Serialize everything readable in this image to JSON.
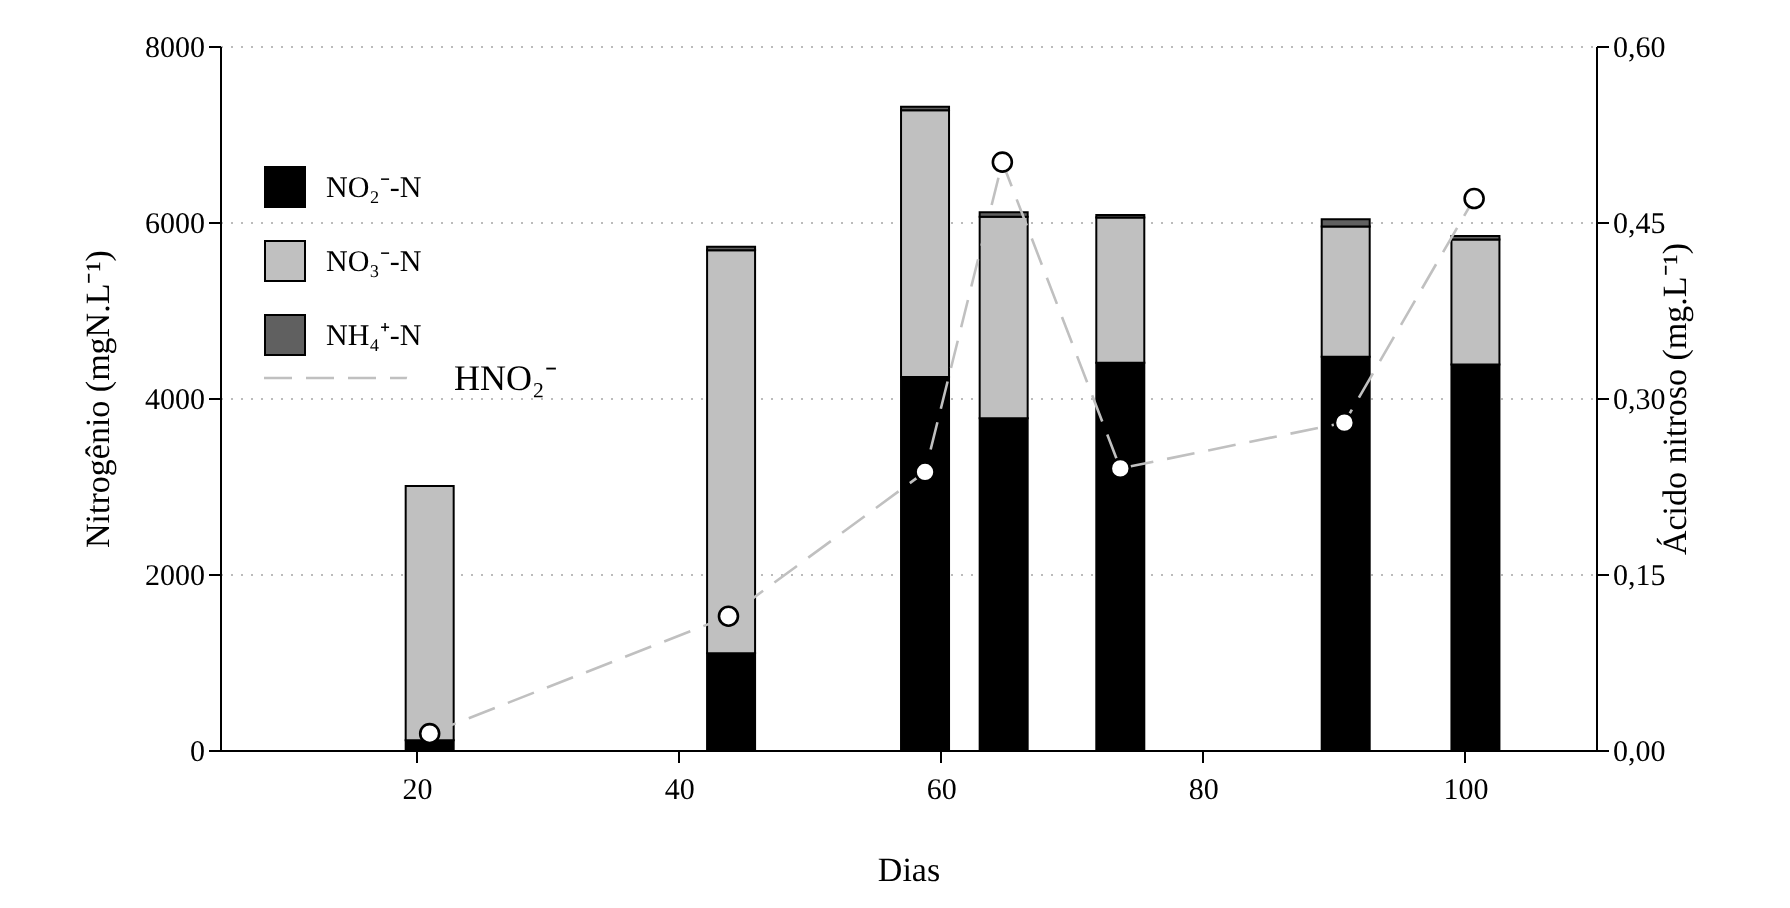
{
  "chart_data": {
    "type": "bar",
    "stacked": true,
    "x": [
      21,
      44,
      58.8,
      64.8,
      73.7,
      90.9,
      100.8
    ],
    "xlabel": "Dias",
    "ylabel": "Nitrogênio (mgN.L⁻¹)",
    "y2label": "Ácido nitroso (mg.L⁻¹)",
    "xlim": [
      5,
      110
    ],
    "xticks": [
      20,
      40,
      60,
      80,
      100
    ],
    "ylim": [
      0,
      8000
    ],
    "yticks": [
      0,
      2000,
      4000,
      6000,
      8000
    ],
    "y2lim": [
      0,
      0.6
    ],
    "y2ticks": [
      {
        "value": 0,
        "label": "0,00"
      },
      {
        "value": 0.15,
        "label": "0,15"
      },
      {
        "value": 0.3,
        "label": "0,30"
      },
      {
        "value": 0.45,
        "label": "0,45"
      },
      {
        "value": 0.6,
        "label": "0,60"
      }
    ],
    "grid": "y",
    "legend": "top left",
    "marker": "circle",
    "line_style": "dashed",
    "series": [
      {
        "name": "NO₂⁻-N",
        "color": "#000000",
        "values": [
          110,
          1100,
          4240,
          3770,
          4400,
          4470,
          4380
        ]
      },
      {
        "name": "NO₃⁻-N",
        "color": "#c0c0c0",
        "values": [
          2890,
          4580,
          3030,
          2290,
          1650,
          1480,
          1420
        ]
      },
      {
        "name": "NH₄⁺-N",
        "color": "#606060",
        "values": [
          null,
          40,
          40,
          50,
          30,
          80,
          40
        ]
      },
      {
        "name": "HNO₂⁻",
        "type": "line",
        "axis": "y2",
        "color": "#c0c0c0",
        "x": [
          21,
          43.8,
          58.8,
          64.7,
          73.7,
          90.8,
          100.7
        ],
        "values": [
          0.014,
          0.114,
          0.237,
          0.501,
          0.24,
          0.279,
          0.47
        ]
      }
    ]
  }
}
